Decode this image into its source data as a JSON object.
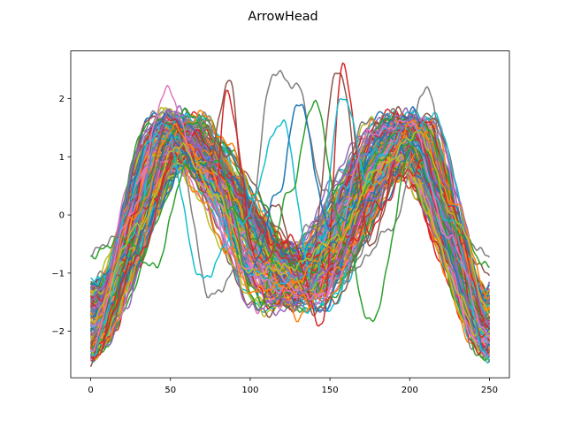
{
  "chart_data": {
    "type": "line",
    "title": "ArrowHead",
    "xlabel": "",
    "ylabel": "",
    "xlim": [
      -12.5,
      262.5
    ],
    "ylim": [
      -2.8,
      2.82
    ],
    "xticks": [
      0,
      50,
      100,
      150,
      200,
      250
    ],
    "yticks": [
      -2,
      -1,
      0,
      1,
      2
    ],
    "xtick_labels": [
      "0",
      "50",
      "100",
      "150",
      "200",
      "250"
    ],
    "ytick_labels": [
      "−2",
      "−1",
      "0",
      "1",
      "2"
    ],
    "grid": false,
    "legend": "none",
    "n_points": 251,
    "palette": [
      "#1f77b4",
      "#ff7f0e",
      "#2ca02c",
      "#d62728",
      "#9467bd",
      "#8c564b",
      "#e377c2",
      "#7f7f7f",
      "#bcbd22",
      "#17becf"
    ],
    "series_shape": {
      "description": "approx. 175 overlaid time series, each resembling a double-hump wave",
      "x_range": [
        0,
        250
      ],
      "y_start_range": [
        -2.55,
        -0.65
      ],
      "first_peak": {
        "x_range": [
          38,
          70
        ],
        "y_range": [
          0.9,
          2.15
        ]
      },
      "middle_trough": {
        "x_range": [
          100,
          160
        ],
        "y_range": [
          -1.95,
          -0.6
        ]
      },
      "second_peak": {
        "x_range": [
          180,
          215
        ],
        "y_range": [
          0.9,
          2.2
        ]
      },
      "y_end_range": [
        -2.5,
        -0.65
      ]
    },
    "series": [
      {
        "color": "#7f7f7f",
        "x": [
          0,
          15,
          35,
          55,
          75,
          95,
          115,
          130,
          145,
          165,
          190,
          210,
          230,
          250
        ],
        "y": [
          -0.65,
          -0.4,
          -0.3,
          1.0,
          -1.4,
          -0.9,
          2.45,
          2.2,
          0.5,
          -0.9,
          -0.2,
          2.2,
          -0.3,
          -0.7
        ]
      },
      {
        "color": "#8c564b",
        "x": [
          0,
          30,
          50,
          70,
          87,
          100,
          115,
          135,
          155,
          175,
          200,
          230,
          250
        ],
        "y": [
          -2.2,
          0.3,
          1.6,
          0.4,
          2.3,
          -0.6,
          0.2,
          -1.3,
          2.5,
          -0.5,
          1.5,
          -0.5,
          -1.0
        ]
      },
      {
        "color": "#d62728",
        "x": [
          0,
          30,
          55,
          78,
          85,
          105,
          125,
          145,
          158,
          175,
          200,
          225,
          250
        ],
        "y": [
          -2.5,
          -0.7,
          1.2,
          0.4,
          2.1,
          -0.8,
          -0.4,
          -1.9,
          2.55,
          -0.3,
          1.5,
          0.2,
          -1.9
        ]
      },
      {
        "color": "#17becf",
        "x": [
          0,
          25,
          45,
          70,
          95,
          120,
          140,
          158,
          175,
          200,
          225,
          250
        ],
        "y": [
          -2.4,
          -0.4,
          1.6,
          -1.1,
          -0.1,
          1.6,
          -1.2,
          2.05,
          0.5,
          1.3,
          -0.1,
          -2.5
        ]
      },
      {
        "color": "#2ca02c",
        "x": [
          0,
          20,
          40,
          60,
          80,
          105,
          125,
          140,
          160,
          175,
          205,
          230,
          250
        ],
        "y": [
          -0.7,
          -0.4,
          -0.9,
          0.8,
          0.9,
          -1.6,
          0.4,
          1.95,
          -0.5,
          -1.85,
          1.4,
          -0.3,
          -0.9
        ]
      },
      {
        "color": "#e377c2",
        "x": [
          0,
          25,
          48,
          68,
          95,
          120,
          145,
          175,
          200,
          225,
          250
        ],
        "y": [
          -2.3,
          0.0,
          2.15,
          0.8,
          -0.9,
          -1.3,
          -1.4,
          1.4,
          1.6,
          -0.4,
          -2.1
        ]
      },
      {
        "color": "#1f77b4",
        "x": [
          0,
          25,
          50,
          75,
          100,
          118,
          130,
          150,
          175,
          200,
          225,
          250
        ],
        "y": [
          -1.2,
          -0.7,
          1.3,
          0.5,
          -1.0,
          0.4,
          1.95,
          -0.2,
          0.3,
          1.3,
          0.2,
          -1.5
        ]
      },
      {
        "color": "#9467bd",
        "x": [
          0,
          25,
          52,
          75,
          100,
          125,
          150,
          178,
          202,
          228,
          250
        ],
        "y": [
          -2.0,
          0.2,
          1.8,
          0.9,
          -1.6,
          -1.5,
          -0.9,
          0.3,
          1.7,
          0.4,
          -1.9
        ]
      },
      {
        "color": "#ff7f0e",
        "x": [
          0,
          28,
          52,
          75,
          100,
          125,
          150,
          178,
          203,
          228,
          250
        ],
        "y": [
          -1.9,
          0.0,
          1.5,
          0.7,
          -1.3,
          -1.2,
          -0.6,
          0.5,
          1.6,
          0.2,
          -1.4
        ]
      },
      {
        "color": "#bcbd22",
        "x": [
          0,
          30,
          55,
          80,
          100,
          125,
          155,
          180,
          205,
          230,
          250
        ],
        "y": [
          -1.8,
          -0.2,
          1.2,
          0.3,
          -1.0,
          -0.9,
          -0.4,
          0.8,
          1.4,
          -0.1,
          -1.7
        ]
      }
    ]
  }
}
